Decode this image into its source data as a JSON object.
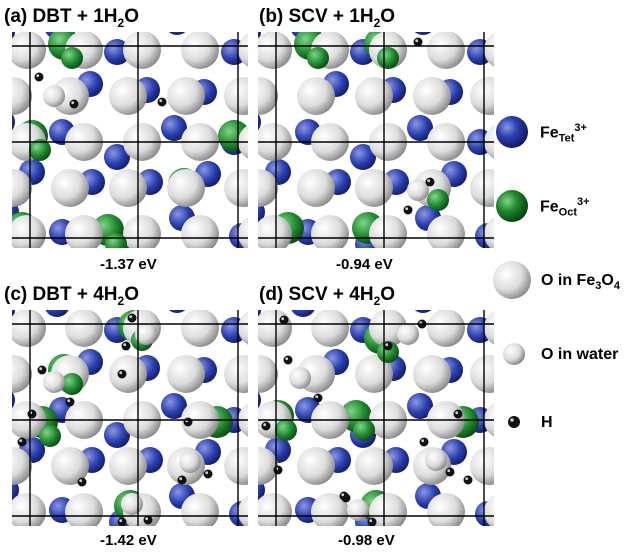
{
  "panels": [
    {
      "letter": "(a)",
      "title_pre": "DBT + 1H",
      "title_sub": "2",
      "title_post": "O",
      "energy": "-1.37 eV"
    },
    {
      "letter": "(b)",
      "title_pre": "SCV + 1H",
      "title_sub": "2",
      "title_post": "O",
      "energy": "-0.94 eV"
    },
    {
      "letter": "(c)",
      "title_pre": "DBT + 4H",
      "title_sub": "2",
      "title_post": "O",
      "energy": "-1.42 eV"
    },
    {
      "letter": "(d)",
      "title_pre": "SCV + 4H",
      "title_sub": "2",
      "title_post": "O",
      "energy": "-0.98 eV"
    }
  ],
  "legend": {
    "fe_tet": {
      "main": "Fe",
      "sub": "Tet",
      "sup": "3+"
    },
    "fe_oct": {
      "main": "Fe",
      "sub": "Oct",
      "sup": "3+"
    },
    "o_fe3o4": {
      "main": "O in Fe",
      "sub": "3",
      "main2": "O",
      "sub2": "4"
    },
    "o_water": {
      "main": "O in water"
    },
    "h": {
      "main": "H"
    }
  },
  "colors": {
    "fe_tet": "#2b3fae",
    "fe_oct": "#1f8a2e",
    "oxygen": "#e6e6e6",
    "hydrogen": "#111111"
  }
}
